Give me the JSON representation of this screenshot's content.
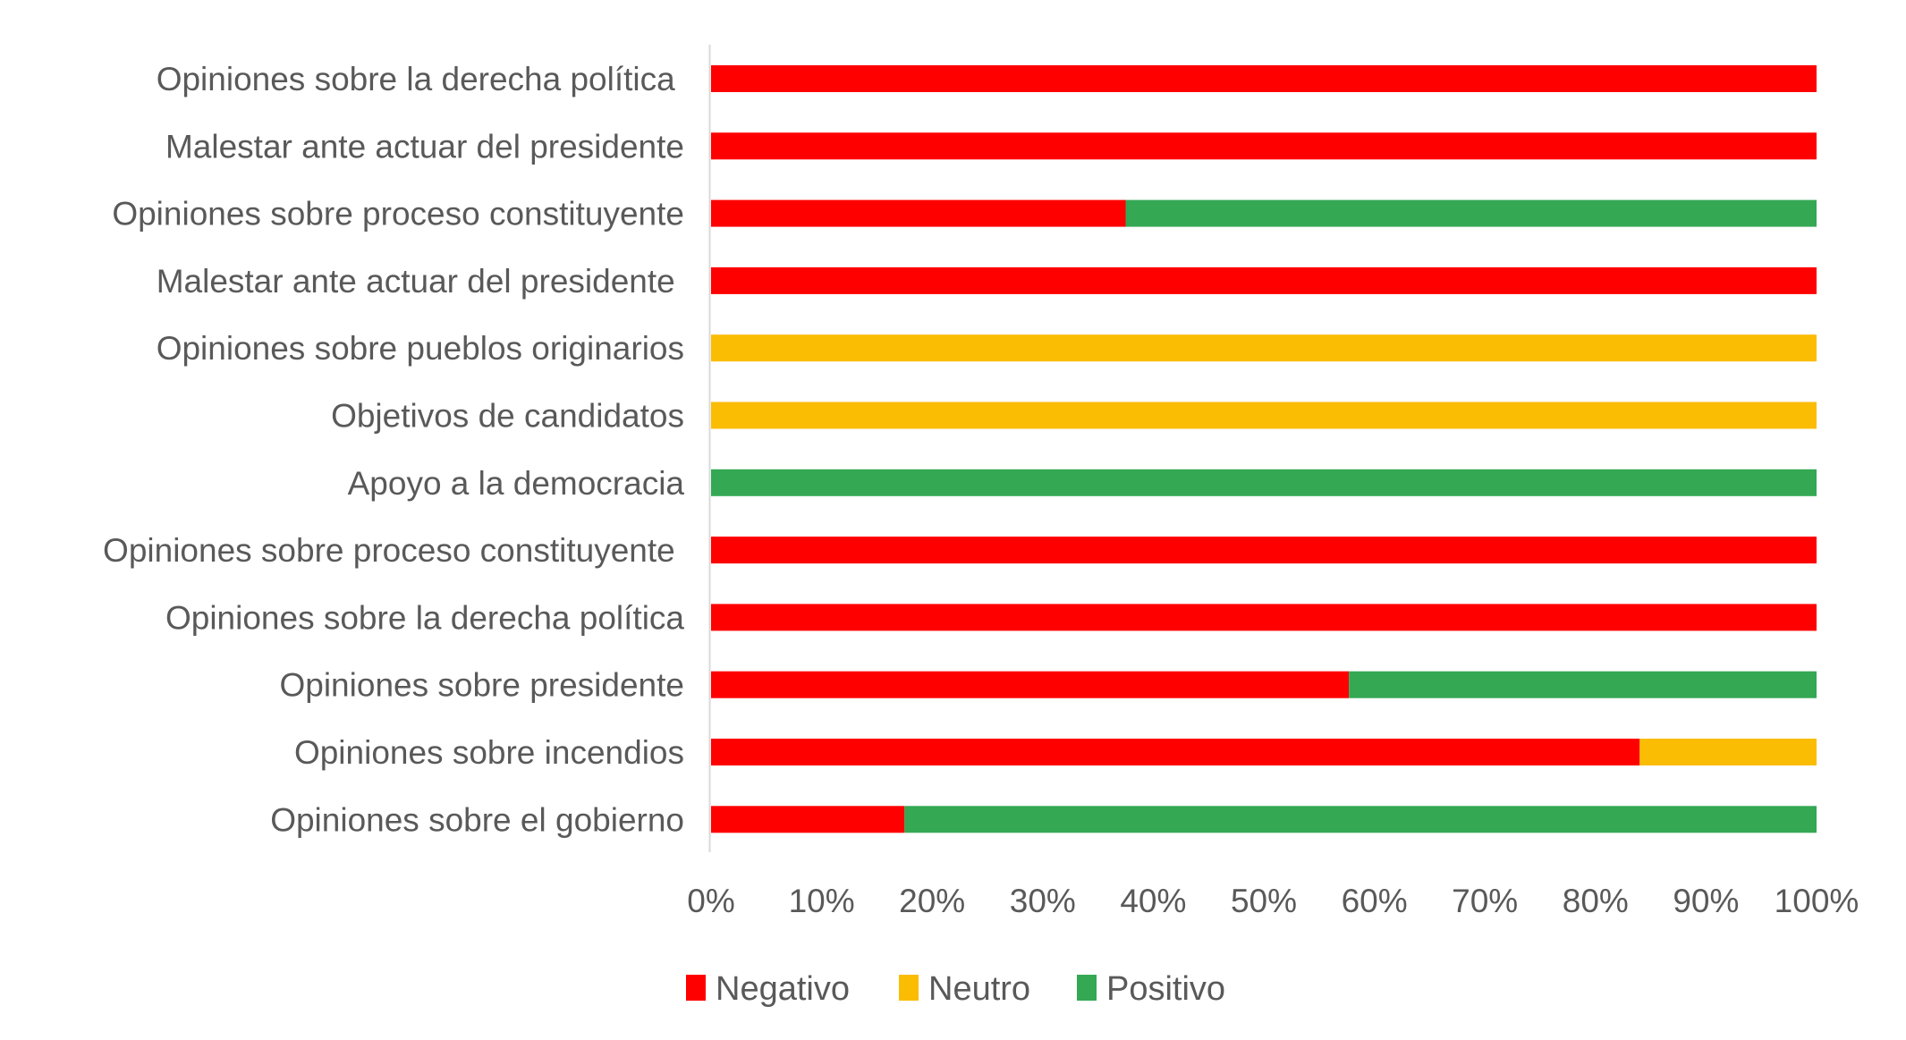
{
  "chart_data": {
    "type": "bar",
    "orientation": "horizontal",
    "stacked": "percent",
    "title": "",
    "xlabel": "",
    "ylabel": "",
    "xlim": [
      0,
      100
    ],
    "grid": false,
    "legend_position": "bottom",
    "categories": [
      "Opiniones sobre la derecha política ",
      "Malestar ante actuar del presidente",
      "Opiniones sobre proceso constituyente",
      "Malestar ante actuar del presidente ",
      "Opiniones sobre pueblos originarios",
      "Objetivos de candidatos",
      "Apoyo a la democracia",
      "Opiniones sobre proceso constituyente ",
      "Opiniones sobre la derecha política",
      "Opiniones sobre presidente",
      "Opiniones sobre incendios",
      "Opiniones sobre el gobierno"
    ],
    "series": [
      {
        "name": "Negativo",
        "color": "#FF0000",
        "values": [
          100,
          100,
          37.5,
          100,
          0,
          0,
          0,
          100,
          100,
          57.7,
          84,
          17.5
        ]
      },
      {
        "name": "Neutro",
        "color": "#FBBC04",
        "values": [
          0,
          0,
          0,
          0,
          100,
          100,
          0,
          0,
          0,
          0,
          16,
          0
        ]
      },
      {
        "name": "Positivo",
        "color": "#34A853",
        "values": [
          0,
          0,
          62.5,
          0,
          0,
          0,
          100,
          0,
          0,
          42.3,
          0,
          82.5
        ]
      }
    ],
    "x_ticks": [
      0,
      10,
      20,
      30,
      40,
      50,
      60,
      70,
      80,
      90,
      100
    ],
    "x_tick_labels": [
      "0%",
      "10%",
      "20%",
      "30%",
      "40%",
      "50%",
      "60%",
      "70%",
      "80%",
      "90%",
      "100%"
    ],
    "axis_color": "#D9D9D9",
    "text_color": "#595959"
  }
}
